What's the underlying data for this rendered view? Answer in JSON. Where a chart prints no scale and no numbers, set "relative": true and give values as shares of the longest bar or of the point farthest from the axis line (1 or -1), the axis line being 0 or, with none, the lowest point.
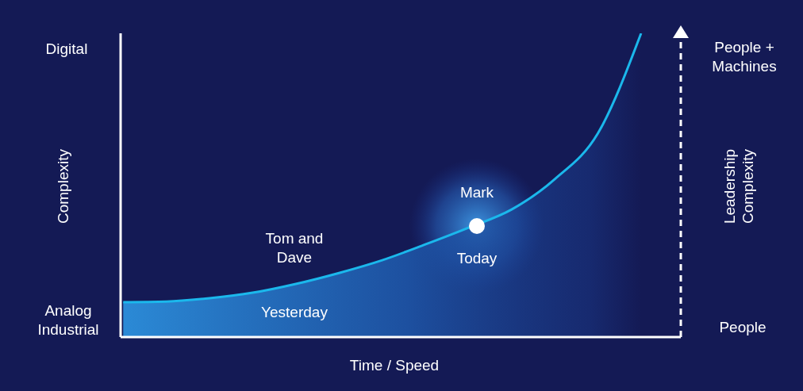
{
  "chart_data": {
    "type": "area",
    "relative": true,
    "xlabel": "Time / Speed",
    "ylabel": "Complexity",
    "y2label": "Leadership Complexity",
    "categories": [
      null,
      null,
      null,
      null,
      null,
      null,
      null,
      null,
      null,
      null,
      null,
      null,
      null
    ],
    "series": [
      {
        "color": "#1bb8ec",
        "values": [
          0.115,
          0.117,
          0.128,
          0.146,
          0.175,
          0.211,
          0.253,
          0.305,
          0.36,
          0.42,
          0.52,
          0.671,
          1
        ]
      }
    ],
    "annotations": [
      "Digital",
      "Analog Industrial",
      "People + Machines",
      "People",
      "Tom and Dave",
      "Mark",
      "Today",
      "Yesterday"
    ]
  }
}
